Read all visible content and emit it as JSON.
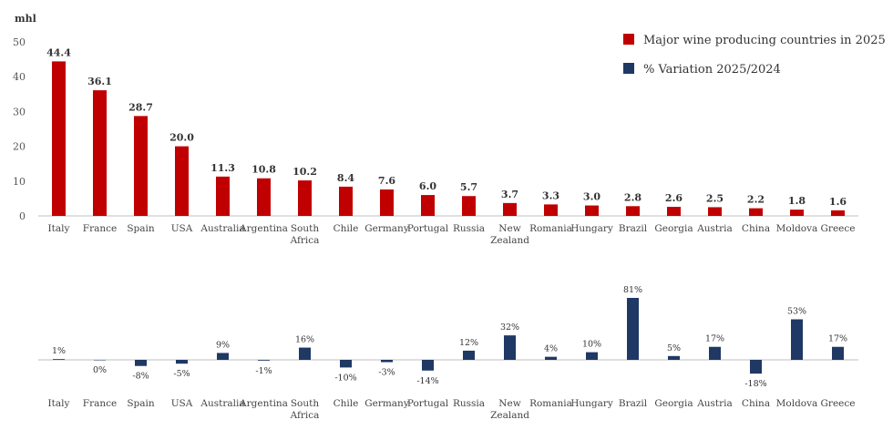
{
  "chart_data": [
    {
      "type": "bar",
      "title": "",
      "ylabel": "mhl",
      "xlabel": "",
      "ylim": [
        0,
        50
      ],
      "yticks": [
        0,
        10,
        20,
        30,
        40,
        50
      ],
      "grid": false,
      "legend_position": "top-right",
      "color": "#C00000",
      "categories": [
        "Italy",
        "France",
        "Spain",
        "USA",
        "Australia",
        "Argentina",
        "South Africa",
        "Chile",
        "Germany",
        "Portugal",
        "Russia",
        "New Zealand",
        "Romania",
        "Hungary",
        "Brazil",
        "Georgia",
        "Austria",
        "China",
        "Moldova",
        "Greece"
      ],
      "series": [
        {
          "name": "Major wine producing countries in 2025",
          "values": [
            44.4,
            36.1,
            28.7,
            20.0,
            11.3,
            10.8,
            10.2,
            8.4,
            7.6,
            6.0,
            5.7,
            3.7,
            3.3,
            3.0,
            2.8,
            2.6,
            2.5,
            2.2,
            1.8,
            1.6
          ],
          "labels": [
            "44.4",
            "36.1",
            "28.7",
            "20.0",
            "11.3",
            "10.8",
            "10.2",
            "8.4",
            "7.6",
            "6.0",
            "5.7",
            "3.7",
            "3.3",
            "3.0",
            "2.8",
            "2.6",
            "2.5",
            "2.2",
            "1.8",
            "1.6"
          ]
        }
      ]
    },
    {
      "type": "bar",
      "title": "",
      "ylabel": "",
      "xlabel": "",
      "grid": false,
      "color": "#1F3864",
      "categories": [
        "Italy",
        "France",
        "Spain",
        "USA",
        "Australia",
        "Argentina",
        "South Africa",
        "Chile",
        "Germany",
        "Portugal",
        "Russia",
        "New Zealand",
        "Romania",
        "Hungary",
        "Brazil",
        "Georgia",
        "Austria",
        "China",
        "Moldova",
        "Greece"
      ],
      "series": [
        {
          "name": "% Variation 2025/2024",
          "values": [
            1,
            0,
            -8,
            -5,
            9,
            -1,
            16,
            -10,
            -3,
            -14,
            12,
            32,
            4,
            10,
            81,
            5,
            17,
            -18,
            53,
            17
          ],
          "labels": [
            "1%",
            "0%",
            "-8%",
            "-5%",
            "9%",
            "-1%",
            "16%",
            "-10%",
            "-3%",
            "-14%",
            "12%",
            "32%",
            "4%",
            "10%",
            "81%",
            "5%",
            "17%",
            "-18%",
            "53%",
            "17%"
          ]
        }
      ]
    }
  ]
}
